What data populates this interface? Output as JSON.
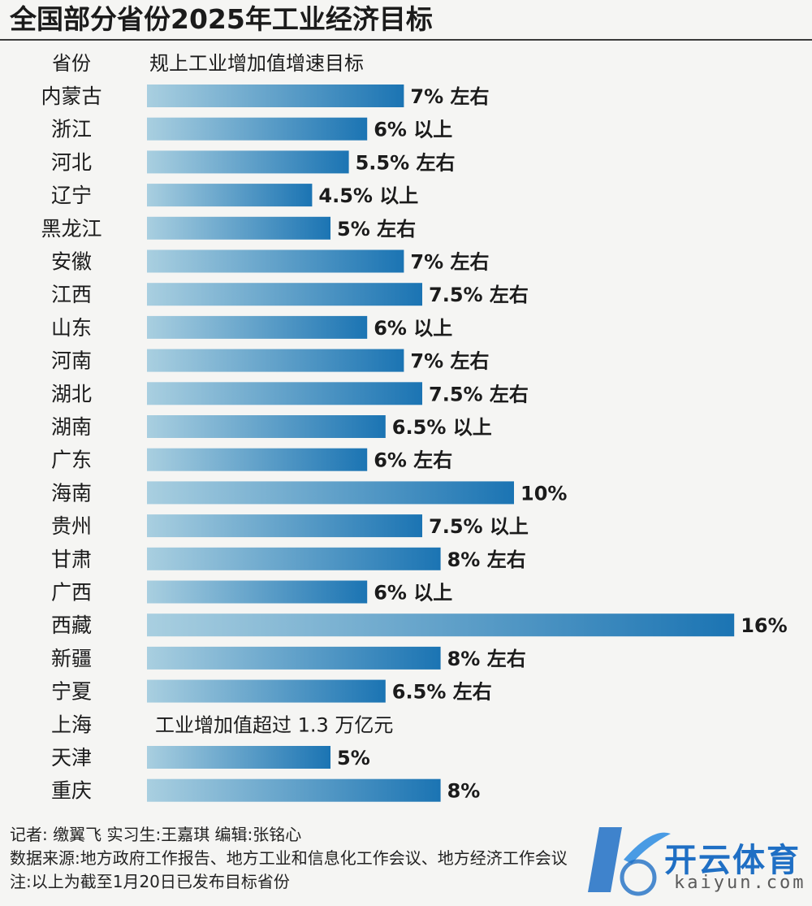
{
  "title": "全国部分省份2025年工业经济目标",
  "header": {
    "province_col": "省份",
    "target_col": "规上工业增加值增速目标"
  },
  "colors": {
    "bar_start": "#a9cfe0",
    "bar_end": "#1b74b3",
    "text": "#1b1b1b",
    "background": "#f5f5f3"
  },
  "chart_data": {
    "type": "bar",
    "orientation": "horizontal",
    "unit": "%",
    "categories": [
      "内蒙古",
      "浙江",
      "河北",
      "辽宁",
      "黑龙江",
      "安徽",
      "江西",
      "山东",
      "河南",
      "湖北",
      "湖南",
      "广东",
      "海南",
      "贵州",
      "甘肃",
      "广西",
      "西藏",
      "新疆",
      "宁夏",
      "上海",
      "天津",
      "重庆"
    ],
    "values": [
      7,
      6,
      5.5,
      4.5,
      5,
      7,
      7.5,
      6,
      7,
      7.5,
      6.5,
      6,
      10,
      7.5,
      8,
      6,
      16,
      8,
      6.5,
      null,
      5,
      8
    ],
    "labels": [
      "7% 左右",
      "6% 以上",
      "5.5% 左右",
      "4.5% 以上",
      "5% 左右",
      "7% 左右",
      "7.5% 左右",
      "6% 以上",
      "7% 左右",
      "7.5% 左右",
      "6.5% 以上",
      "6% 左右",
      "10%",
      "7.5% 以上",
      "8% 左右",
      "6% 以上",
      "16%",
      "8% 左右",
      "6.5% 左右",
      "工业增加值超过 1.3 万亿元",
      "5%",
      "8%"
    ]
  },
  "footer": {
    "credits": "记者: 缴翼飞  实习生:王嘉琪  编辑:张铭心",
    "source": "数据来源:地方政府工作报告、地方工业和信息化工作会议、地方经济工作会议",
    "note": "注:以上为截至1月20日已发布目标省份"
  },
  "watermark": {
    "brand": "开云体育",
    "domain": "kaiyun.com"
  }
}
